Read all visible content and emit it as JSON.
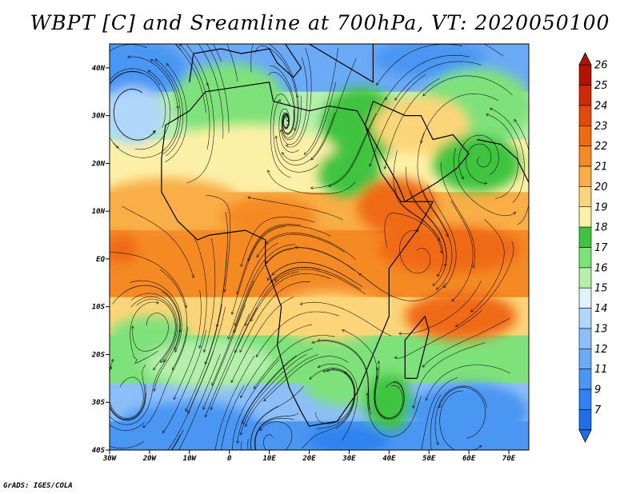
{
  "title": "WBPT [C] and Sreamline at 700hPa, VT: 2020050100",
  "credit": "GrADS: IGES/COLA",
  "map": {
    "lon_range": [
      -30,
      75
    ],
    "lat_range": [
      -40,
      45
    ],
    "lon_ticks": [
      {
        "value": -30,
        "label": "30W"
      },
      {
        "value": -20,
        "label": "20W"
      },
      {
        "value": -10,
        "label": "10W"
      },
      {
        "value": 0,
        "label": "0"
      },
      {
        "value": 10,
        "label": "10E"
      },
      {
        "value": 20,
        "label": "20E"
      },
      {
        "value": 30,
        "label": "30E"
      },
      {
        "value": 40,
        "label": "40E"
      },
      {
        "value": 50,
        "label": "50E"
      },
      {
        "value": 60,
        "label": "60E"
      },
      {
        "value": 70,
        "label": "70E"
      }
    ],
    "lat_ticks": [
      {
        "value": 40,
        "label": "40N"
      },
      {
        "value": 30,
        "label": "30N"
      },
      {
        "value": 20,
        "label": "20N"
      },
      {
        "value": 10,
        "label": "10N"
      },
      {
        "value": 0,
        "label": "EQ"
      },
      {
        "value": -10,
        "label": "10S"
      },
      {
        "value": -20,
        "label": "20S"
      },
      {
        "value": -30,
        "label": "30S"
      },
      {
        "value": -40,
        "label": "40S"
      }
    ]
  },
  "colorbar": {
    "levels": [
      "7",
      "9",
      "11",
      "12",
      "13",
      "14",
      "15",
      "16",
      "17",
      "18",
      "19",
      "20",
      "21",
      "22",
      "23",
      "24",
      "25",
      "26"
    ],
    "colors": [
      "#1e6ee6",
      "#2f82ef",
      "#4a96f3",
      "#6aaaf6",
      "#8cbff8",
      "#b0d6fa",
      "#dff3fc",
      "#b4f0aa",
      "#7ee27a",
      "#3fc43f",
      "#fcf0a6",
      "#fcd578",
      "#f9ae46",
      "#f58a24",
      "#f06a12",
      "#e24a0a",
      "#d02a04",
      "#b01204"
    ]
  },
  "field_patches": [
    {
      "lon": -25,
      "lat": 40,
      "rx": 14,
      "ry": 6,
      "color": "#4a96f3"
    },
    {
      "lon": 50,
      "lat": 42,
      "rx": 14,
      "ry": 4,
      "color": "#4a96f3"
    },
    {
      "lon": 62,
      "lat": 32,
      "rx": 14,
      "ry": 8,
      "color": "#7ee27a"
    },
    {
      "lon": -24,
      "lat": 30,
      "rx": 8,
      "ry": 6,
      "color": "#b0d6fa"
    },
    {
      "lon": 0,
      "lat": 33,
      "rx": 14,
      "ry": 8,
      "color": "#7ee27a"
    },
    {
      "lon": 33,
      "lat": 28,
      "rx": 10,
      "ry": 8,
      "color": "#3fc43f"
    },
    {
      "lon": 48,
      "lat": 28,
      "rx": 12,
      "ry": 6,
      "color": "#fcd578"
    },
    {
      "lon": 5,
      "lat": 22,
      "rx": 22,
      "ry": 6,
      "color": "#fcf0a6"
    },
    {
      "lon": 62,
      "lat": 20,
      "rx": 11,
      "ry": 6,
      "color": "#3fc43f"
    },
    {
      "lon": 30,
      "lat": 18,
      "rx": 8,
      "ry": 5,
      "color": "#3fc43f"
    },
    {
      "lon": -15,
      "lat": 12,
      "rx": 18,
      "ry": 5,
      "color": "#f9ae46"
    },
    {
      "lon": 42,
      "lat": 11,
      "rx": 10,
      "ry": 6,
      "color": "#f06a12"
    },
    {
      "lon": 10,
      "lat": 9,
      "rx": 12,
      "ry": 4,
      "color": "#f58a24"
    },
    {
      "lon": 10,
      "lat": 0,
      "rx": 36,
      "ry": 6,
      "color": "#f58a24"
    },
    {
      "lon": 55,
      "lat": 2,
      "rx": 18,
      "ry": 5,
      "color": "#f06a12"
    },
    {
      "lon": -27,
      "lat": 2,
      "rx": 4,
      "ry": 3,
      "color": "#f06a12"
    },
    {
      "lon": 58,
      "lat": -12,
      "rx": 14,
      "ry": 5,
      "color": "#f06a12"
    },
    {
      "lon": -20,
      "lat": -16,
      "rx": 10,
      "ry": 4,
      "color": "#7ee27a"
    },
    {
      "lon": 25,
      "lat": -12,
      "rx": 14,
      "ry": 5,
      "color": "#fcd578"
    },
    {
      "lon": -5,
      "lat": -22,
      "rx": 16,
      "ry": 5,
      "color": "#b4f0aa"
    },
    {
      "lon": 30,
      "lat": -25,
      "rx": 12,
      "ry": 6,
      "color": "#7ee27a"
    },
    {
      "lon": 40,
      "lat": -30,
      "rx": 6,
      "ry": 6,
      "color": "#3fc43f"
    },
    {
      "lon": 60,
      "lat": -32,
      "rx": 15,
      "ry": 6,
      "color": "#4a96f3"
    },
    {
      "lon": -10,
      "lat": -35,
      "rx": 18,
      "ry": 5,
      "color": "#4a96f3"
    },
    {
      "lon": 30,
      "lat": -38,
      "rx": 10,
      "ry": 3,
      "color": "#2f82ef"
    }
  ]
}
